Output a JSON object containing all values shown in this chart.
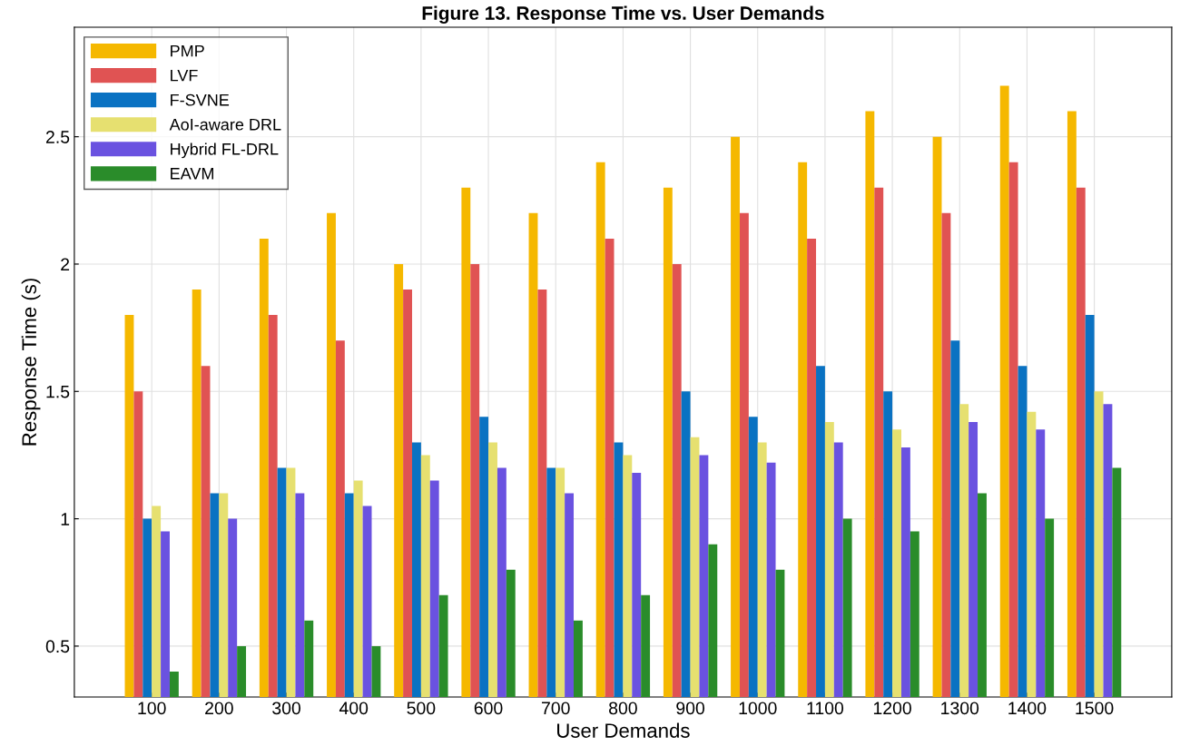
{
  "chart_data": {
    "type": "bar",
    "title": "Figure 13. Response Time vs. User Demands",
    "xlabel": "User Demands",
    "ylabel": "Response Time (s)",
    "categories": [
      "100",
      "200",
      "300",
      "400",
      "500",
      "600",
      "700",
      "800",
      "900",
      "1000",
      "1100",
      "1200",
      "1300",
      "1400",
      "1500"
    ],
    "series": [
      {
        "name": "PMP",
        "color": "#f5b800",
        "values": [
          1.8,
          1.9,
          2.1,
          2.2,
          2.0,
          2.3,
          2.2,
          2.4,
          2.3,
          2.5,
          2.4,
          2.6,
          2.5,
          2.7,
          2.6
        ]
      },
      {
        "name": "LVF",
        "color": "#e05353",
        "values": [
          1.5,
          1.6,
          1.8,
          1.7,
          1.9,
          2.0,
          1.9,
          2.1,
          2.0,
          2.2,
          2.1,
          2.3,
          2.2,
          2.4,
          2.3
        ]
      },
      {
        "name": "F-SVNE",
        "color": "#0a72c2",
        "values": [
          1.0,
          1.1,
          1.2,
          1.1,
          1.3,
          1.4,
          1.2,
          1.3,
          1.5,
          1.4,
          1.6,
          1.5,
          1.7,
          1.6,
          1.8
        ]
      },
      {
        "name": "AoI-aware DRL",
        "color": "#e6e070",
        "values": [
          1.05,
          1.1,
          1.2,
          1.15,
          1.25,
          1.3,
          1.2,
          1.25,
          1.32,
          1.3,
          1.38,
          1.35,
          1.45,
          1.42,
          1.5
        ]
      },
      {
        "name": "Hybrid FL-DRL",
        "color": "#6a52e0",
        "values": [
          0.95,
          1.0,
          1.1,
          1.05,
          1.15,
          1.2,
          1.1,
          1.18,
          1.25,
          1.22,
          1.3,
          1.28,
          1.38,
          1.35,
          1.45
        ]
      },
      {
        "name": "EAVM",
        "color": "#2a8c2a",
        "values": [
          0.4,
          0.5,
          0.6,
          0.5,
          0.7,
          0.8,
          0.6,
          0.7,
          0.9,
          0.8,
          1.0,
          0.95,
          1.1,
          1.0,
          1.2
        ]
      }
    ],
    "ylim": [
      0.3,
      2.93
    ],
    "yticks": [
      0.5,
      1,
      1.5,
      2,
      2.5
    ],
    "grid": true,
    "legend": "top left"
  }
}
